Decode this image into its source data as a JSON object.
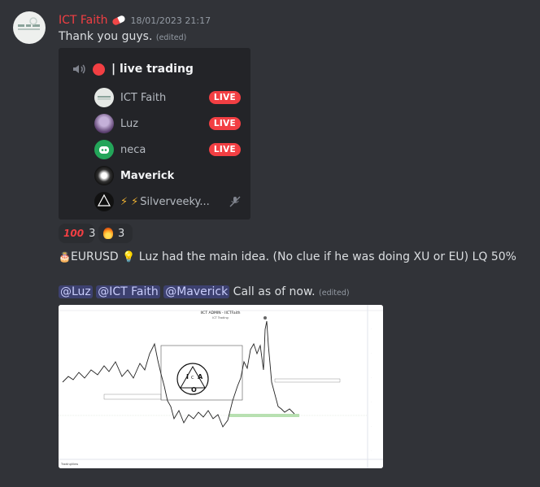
{
  "message1": {
    "username": "ICT Faith",
    "username_icon": "pill-icon",
    "timestamp": "18/01/2023 21:17",
    "text": "Thank you guys.",
    "edited_label": "(edited)"
  },
  "voice_panel": {
    "speaker_icon": "speaker-icon",
    "channel": "| live trading",
    "users": [
      {
        "name": "ICT Faith",
        "live": "LIVE",
        "muted": true
      },
      {
        "name": "Luz",
        "live": "LIVE",
        "muted": false
      },
      {
        "name": "neca",
        "live": "LIVE",
        "muted": false
      },
      {
        "name": "Maverick",
        "live": "",
        "muted": false
      },
      {
        "name": "Silverveeky...",
        "live": "",
        "muted": true
      }
    ]
  },
  "reactions": [
    {
      "emoji": "100",
      "count": "3"
    },
    {
      "emoji": "fire-icon",
      "count": "3"
    }
  ],
  "message2": {
    "text": "EURUSD",
    "text2": " Luz had the main idea. (No clue if he was doing XU or EU) LQ 50%"
  },
  "message3": {
    "mentions": [
      "@Luz",
      "@ICT Faith",
      "@Maverick"
    ],
    "text": " Call as of now.",
    "edited_label": "(edited)"
  },
  "chart": {
    "title": "IICT ADMIN - IICTFaith",
    "subtitle": "ICT Trading",
    "logo_letters": [
      "I",
      "C",
      "A",
      "O"
    ],
    "footer": "TradingView"
  },
  "colors": {
    "background": "#313338",
    "username": "#f23f43",
    "live_badge": "#f23f43",
    "mention_bg": "#3c4270",
    "green_zone": "#b7e1b0"
  }
}
